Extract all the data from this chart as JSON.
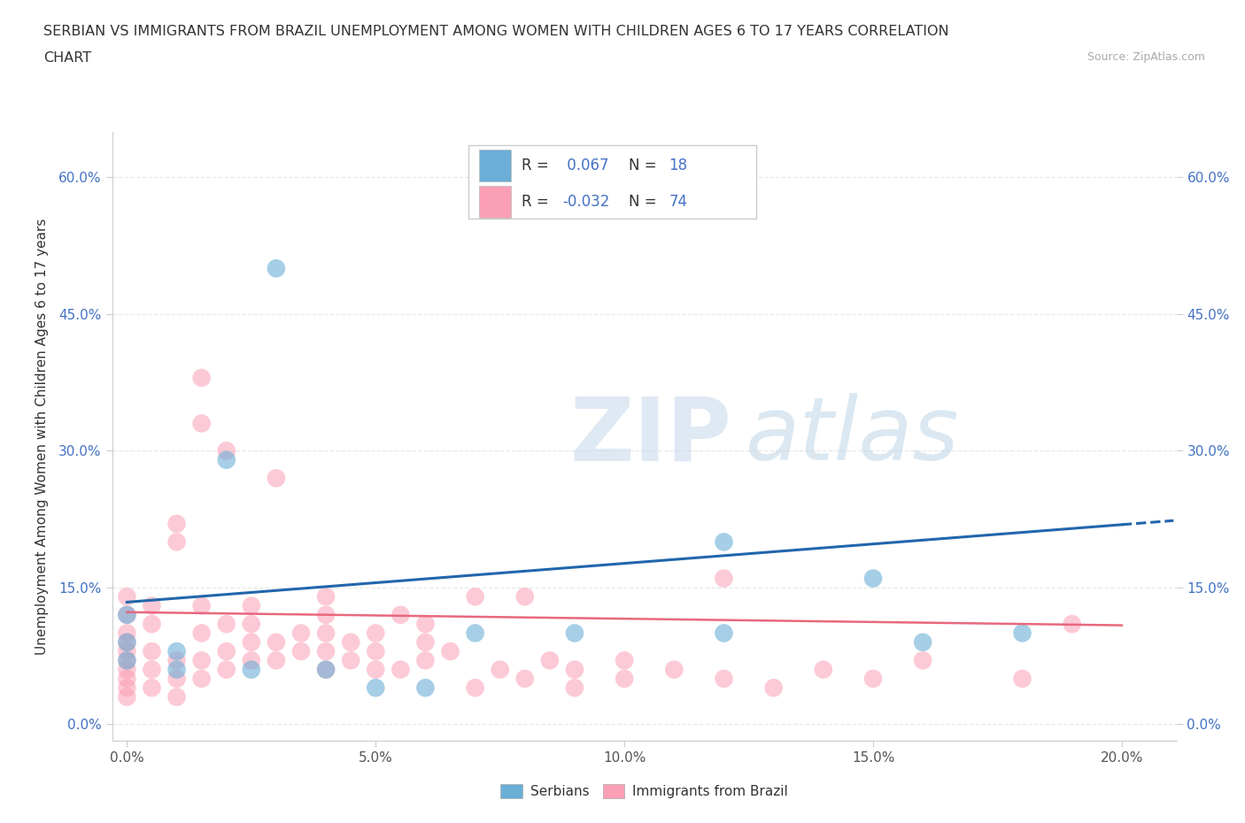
{
  "title_line1": "SERBIAN VS IMMIGRANTS FROM BRAZIL UNEMPLOYMENT AMONG WOMEN WITH CHILDREN AGES 6 TO 17 YEARS CORRELATION",
  "title_line2": "CHART",
  "source_text": "Source: ZipAtlas.com",
  "ylabel": "Unemployment Among Women with Children Ages 6 to 17 years",
  "xmin": 0.0,
  "xmax": 0.2,
  "ymin": 0.0,
  "ymax": 0.65,
  "yticks": [
    0.0,
    0.15,
    0.3,
    0.45,
    0.6
  ],
  "ytick_labels": [
    "0.0%",
    "15.0%",
    "30.0%",
    "45.0%",
    "60.0%"
  ],
  "xticks": [
    0.0,
    0.05,
    0.1,
    0.15,
    0.2
  ],
  "xtick_labels": [
    "0.0%",
    "5.0%",
    "10.0%",
    "15.0%",
    "20.0%"
  ],
  "serbian_color": "#6baed6",
  "brazil_color": "#fa9fb5",
  "serbian_line_color": "#2166ac",
  "brazil_line_color": "#e8687e",
  "serbian_intercept": 0.134,
  "serbian_slope": 0.425,
  "brazil_intercept": 0.123,
  "brazil_slope": -0.072,
  "watermark_zip": "ZIP",
  "watermark_atlas": "atlas",
  "bg_color": "#ffffff",
  "grid_color": "#e8e8e8",
  "title_color": "#333333",
  "tick_color_y": "#4472c4",
  "tick_color_x": "#555555",
  "serbian_label": "Serbians",
  "brazil_label": "Immigrants from Brazil",
  "R_label": "R = ",
  "N_label": "  N = ",
  "R_serbian": " 0.067",
  "N_serbian": "18",
  "R_brazil": "-0.032",
  "N_brazil": "74",
  "serbian_points": [
    [
      0.0,
      0.09
    ],
    [
      0.0,
      0.07
    ],
    [
      0.0,
      0.12
    ],
    [
      0.01,
      0.08
    ],
    [
      0.01,
      0.06
    ],
    [
      0.02,
      0.29
    ],
    [
      0.025,
      0.06
    ],
    [
      0.03,
      0.5
    ],
    [
      0.04,
      0.06
    ],
    [
      0.05,
      0.04
    ],
    [
      0.06,
      0.04
    ],
    [
      0.07,
      0.1
    ],
    [
      0.09,
      0.1
    ],
    [
      0.12,
      0.1
    ],
    [
      0.15,
      0.16
    ],
    [
      0.16,
      0.09
    ],
    [
      0.18,
      0.1
    ],
    [
      0.12,
      0.2
    ]
  ],
  "brazil_points": [
    [
      0.0,
      0.05
    ],
    [
      0.0,
      0.06
    ],
    [
      0.0,
      0.08
    ],
    [
      0.0,
      0.1
    ],
    [
      0.0,
      0.12
    ],
    [
      0.0,
      0.14
    ],
    [
      0.0,
      0.04
    ],
    [
      0.0,
      0.03
    ],
    [
      0.0,
      0.07
    ],
    [
      0.0,
      0.09
    ],
    [
      0.005,
      0.08
    ],
    [
      0.005,
      0.06
    ],
    [
      0.005,
      0.04
    ],
    [
      0.005,
      0.11
    ],
    [
      0.005,
      0.13
    ],
    [
      0.01,
      0.07
    ],
    [
      0.01,
      0.05
    ],
    [
      0.01,
      0.03
    ],
    [
      0.01,
      0.22
    ],
    [
      0.01,
      0.2
    ],
    [
      0.015,
      0.07
    ],
    [
      0.015,
      0.05
    ],
    [
      0.015,
      0.1
    ],
    [
      0.015,
      0.13
    ],
    [
      0.015,
      0.38
    ],
    [
      0.015,
      0.33
    ],
    [
      0.02,
      0.08
    ],
    [
      0.02,
      0.06
    ],
    [
      0.02,
      0.11
    ],
    [
      0.02,
      0.3
    ],
    [
      0.025,
      0.07
    ],
    [
      0.025,
      0.09
    ],
    [
      0.025,
      0.11
    ],
    [
      0.025,
      0.13
    ],
    [
      0.03,
      0.09
    ],
    [
      0.03,
      0.07
    ],
    [
      0.03,
      0.27
    ],
    [
      0.035,
      0.08
    ],
    [
      0.035,
      0.1
    ],
    [
      0.04,
      0.06
    ],
    [
      0.04,
      0.08
    ],
    [
      0.04,
      0.1
    ],
    [
      0.04,
      0.14
    ],
    [
      0.04,
      0.12
    ],
    [
      0.045,
      0.07
    ],
    [
      0.045,
      0.09
    ],
    [
      0.05,
      0.06
    ],
    [
      0.05,
      0.08
    ],
    [
      0.05,
      0.1
    ],
    [
      0.055,
      0.06
    ],
    [
      0.055,
      0.12
    ],
    [
      0.06,
      0.07
    ],
    [
      0.06,
      0.09
    ],
    [
      0.06,
      0.11
    ],
    [
      0.065,
      0.08
    ],
    [
      0.07,
      0.14
    ],
    [
      0.07,
      0.04
    ],
    [
      0.075,
      0.06
    ],
    [
      0.08,
      0.05
    ],
    [
      0.08,
      0.14
    ],
    [
      0.085,
      0.07
    ],
    [
      0.09,
      0.06
    ],
    [
      0.09,
      0.04
    ],
    [
      0.1,
      0.07
    ],
    [
      0.1,
      0.05
    ],
    [
      0.11,
      0.06
    ],
    [
      0.12,
      0.16
    ],
    [
      0.12,
      0.05
    ],
    [
      0.13,
      0.04
    ],
    [
      0.14,
      0.06
    ],
    [
      0.15,
      0.05
    ],
    [
      0.16,
      0.07
    ],
    [
      0.18,
      0.05
    ],
    [
      0.19,
      0.11
    ]
  ]
}
